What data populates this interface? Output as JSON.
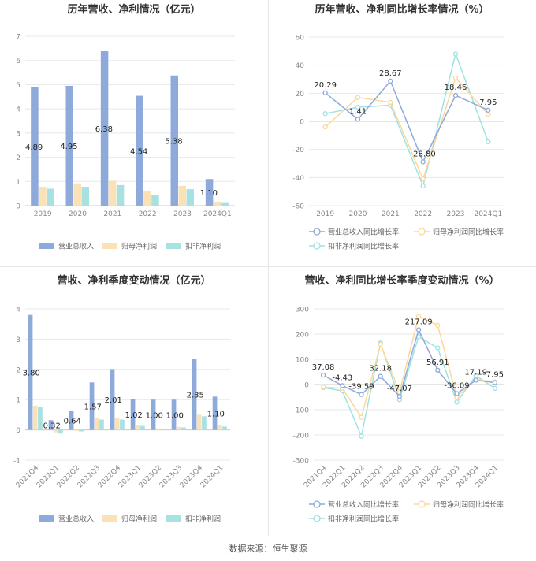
{
  "footer": "数据来源：恒生聚源",
  "colors": {
    "revenue": "#8eaadb",
    "net_profit": "#fbe2b6",
    "deducted_profit": "#a7e1e1",
    "rev_growth_line": "#8eaadb",
    "np_growth_line": "#fbd89a",
    "dp_growth_line": "#9ee2e2",
    "axis_text": "#888888",
    "grid": "#e8e8e8",
    "title": "#333333"
  },
  "chart_data": [
    {
      "id": "annual-bar",
      "type": "bar",
      "title": "历年营收、净利情况（亿元）",
      "categories": [
        "2019",
        "2020",
        "2021",
        "2022",
        "2023",
        "2024Q1"
      ],
      "series": [
        {
          "name": "营业总收入",
          "values": [
            4.89,
            4.95,
            6.38,
            4.54,
            5.38,
            1.1
          ]
        },
        {
          "name": "归母净利润",
          "values": [
            0.78,
            0.92,
            1.03,
            0.62,
            0.82,
            0.17
          ]
        },
        {
          "name": "扣非净利润",
          "values": [
            0.7,
            0.78,
            0.85,
            0.45,
            0.68,
            0.11
          ]
        }
      ],
      "data_labels": [
        "4.89",
        "4.95",
        "6.38",
        "4.54",
        "5.38",
        "1.10"
      ],
      "yticks": [
        "0",
        "1",
        "2",
        "3",
        "4",
        "5",
        "6",
        "7"
      ],
      "ylim": [
        0,
        7
      ],
      "grid": true,
      "legend": "bottom"
    },
    {
      "id": "annual-line",
      "type": "line",
      "title": "历年营收、净利同比增长率情况（%）",
      "categories": [
        "2019",
        "2020",
        "2021",
        "2022",
        "2023",
        "2024Q1"
      ],
      "series": [
        {
          "name": "营业总收入同比增长率",
          "values": [
            20.29,
            1.41,
            28.67,
            -28.8,
            18.46,
            7.95
          ]
        },
        {
          "name": "归母净利润同比增长率",
          "values": [
            -4.0,
            17.0,
            13.5,
            -41.0,
            31.0,
            5.0
          ]
        },
        {
          "name": "扣非净利润同比增长率",
          "values": [
            5.5,
            10.0,
            11.5,
            -46.0,
            48.0,
            -14.5
          ]
        }
      ],
      "data_labels": [
        "20.29",
        "1.41",
        "28.67",
        "-28.80",
        "18.46",
        "7.95"
      ],
      "yticks": [
        "60",
        "40",
        "20",
        "0",
        "-20",
        "-40",
        "-60"
      ],
      "ylim": [
        -60,
        60
      ],
      "grid": true,
      "legend": "bottom"
    },
    {
      "id": "quarter-bar",
      "type": "bar",
      "title": "营收、净利季度变动情况（亿元）",
      "categories": [
        "2021Q4",
        "2022Q1",
        "2022Q2",
        "2022Q3",
        "2022Q4",
        "2023Q1",
        "2023Q2",
        "2023Q3",
        "2023Q4",
        "2024Q1"
      ],
      "series": [
        {
          "name": "营业总收入",
          "values": [
            3.8,
            0.32,
            0.64,
            1.57,
            2.01,
            1.02,
            1.0,
            1.0,
            2.35,
            1.1
          ]
        },
        {
          "name": "归母净利润",
          "values": [
            0.8,
            -0.08,
            -0.03,
            0.38,
            0.38,
            0.15,
            0.05,
            0.1,
            0.5,
            0.17
          ]
        },
        {
          "name": "扣非净利润",
          "values": [
            0.77,
            -0.12,
            -0.05,
            0.34,
            0.34,
            0.13,
            0.03,
            0.08,
            0.45,
            0.11
          ]
        }
      ],
      "data_labels": [
        "3.80",
        "0.32",
        "0.64",
        "1.57",
        "2.01",
        "1.02",
        "1.00",
        "1.00",
        "2.35",
        "1.10"
      ],
      "yticks": [
        "4",
        "3",
        "2",
        "1",
        "0",
        "-1"
      ],
      "ylim": [
        -1,
        4
      ],
      "grid": true,
      "legend": "bottom"
    },
    {
      "id": "quarter-line",
      "type": "line",
      "title": "营收、净利同比增长率季度变动情况（%）",
      "categories": [
        "2021Q4",
        "2022Q1",
        "2022Q2",
        "2022Q3",
        "2022Q4",
        "2023Q1",
        "2023Q2",
        "2023Q3",
        "2023Q4",
        "2024Q1"
      ],
      "series": [
        {
          "name": "营业总收入同比增长率",
          "values": [
            37.08,
            -4.43,
            -39.59,
            32.18,
            -47.07,
            217.09,
            56.91,
            -36.09,
            17.19,
            7.95
          ]
        },
        {
          "name": "归母净利润同比增长率",
          "values": [
            -10.0,
            -15.0,
            -130.0,
            160.0,
            -30.0,
            270.0,
            235.0,
            -50.0,
            20.0,
            10.0
          ]
        },
        {
          "name": "扣非净利润同比增长率",
          "values": [
            -12.0,
            -25.0,
            -205.0,
            165.0,
            -60.0,
            190.0,
            145.0,
            -70.0,
            35.0,
            -15.0
          ]
        }
      ],
      "data_labels": [
        "37.08",
        "-4.43",
        "-39.59",
        "32.18",
        "-47.07",
        "217.09",
        "56.91",
        "-36.09",
        "17.19",
        "7.95"
      ],
      "yticks": [
        "300",
        "200",
        "100",
        "0",
        "-100",
        "-200",
        "-300"
      ],
      "ylim": [
        -300,
        300
      ],
      "grid": true,
      "legend": "bottom"
    }
  ]
}
